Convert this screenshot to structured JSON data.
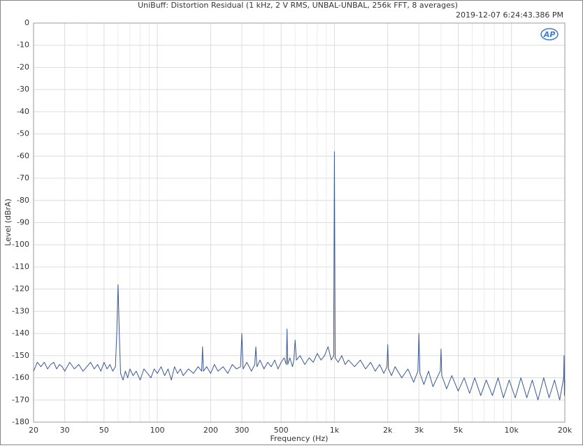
{
  "chart_data": {
    "type": "line",
    "title": "UniBuff: Distortion Residual (1 kHz, 2 V RMS, UNBAL-UNBAL, 256k FFT, 8 averages)",
    "subtitle": "2019-12-07 6:24:43.386 PM",
    "x_label": "Frequency (Hz)",
    "y_label": "Level (dBrA)",
    "x_scale": "log",
    "grid": true,
    "xlim": [
      20,
      20000
    ],
    "ylim": [
      -180,
      0
    ],
    "xticks": [
      20,
      30,
      50,
      100,
      200,
      300,
      500,
      {
        "value": 1000,
        "label": "1k"
      },
      {
        "value": 2000,
        "label": "2k"
      },
      {
        "value": 3000,
        "label": "3k"
      },
      {
        "value": 5000,
        "label": "5k"
      },
      {
        "value": 10000,
        "label": "10k"
      },
      {
        "value": 20000,
        "label": "20k"
      }
    ],
    "x_minor_ticks": [
      40,
      60,
      70,
      80,
      90,
      400,
      600,
      700,
      800,
      900,
      4000,
      6000,
      7000,
      8000,
      9000
    ],
    "yticks": [
      0,
      -10,
      -20,
      -30,
      -40,
      -50,
      -60,
      -70,
      -80,
      -90,
      -100,
      -110,
      -120,
      -130,
      -140,
      -150,
      -160,
      -170,
      -180
    ],
    "series": [
      {
        "color": "#3b5896",
        "x": [
          20,
          21,
          22,
          23,
          24,
          25,
          26,
          27,
          28,
          29,
          30,
          32,
          34,
          36,
          38,
          40,
          42,
          44,
          46,
          48,
          50,
          52,
          54,
          56,
          58,
          59,
          60,
          61,
          62,
          64,
          66,
          68,
          70,
          73,
          76,
          80,
          84,
          88,
          92,
          96,
          100,
          105,
          110,
          115,
          120,
          125,
          130,
          135,
          140,
          150,
          160,
          170,
          178,
          180,
          182,
          190,
          200,
          210,
          220,
          235,
          250,
          265,
          280,
          295,
          300,
          305,
          320,
          340,
          355,
          360,
          365,
          380,
          400,
          420,
          440,
          460,
          480,
          500,
          520,
          535,
          540,
          545,
          560,
          580,
          590,
          600,
          610,
          640,
          680,
          720,
          760,
          800,
          840,
          880,
          920,
          960,
          990,
          1000,
          1010,
          1050,
          1100,
          1150,
          1200,
          1300,
          1400,
          1500,
          1600,
          1700,
          1800,
          1900,
          1980,
          2000,
          2020,
          2100,
          2200,
          2400,
          2600,
          2800,
          2960,
          3000,
          3040,
          3200,
          3400,
          3600,
          3900,
          3960,
          4000,
          4040,
          4300,
          4600,
          5000,
          5400,
          5800,
          6200,
          6700,
          7200,
          7800,
          8400,
          9000,
          9700,
          10500,
          11300,
          12200,
          13100,
          14100,
          15200,
          16300,
          17500,
          18700,
          19700,
          19800,
          19900,
          20000
        ],
        "values": [
          -157,
          -153,
          -155,
          -153,
          -156,
          -154,
          -153,
          -156,
          -154,
          -155,
          -157,
          -153,
          -156,
          -154,
          -157,
          -155,
          -153,
          -156,
          -154,
          -157,
          -153,
          -156,
          -154,
          -157,
          -155,
          -140,
          -118,
          -140,
          -158,
          -161,
          -157,
          -160,
          -156,
          -159,
          -157,
          -161,
          -156,
          -158,
          -160,
          -156,
          -158,
          -155,
          -159,
          -156,
          -161,
          -155,
          -158,
          -156,
          -159,
          -156,
          -158,
          -155,
          -157,
          -146,
          -157,
          -155,
          -158,
          -154,
          -157,
          -155,
          -158,
          -154,
          -156,
          -155,
          -140,
          -156,
          -153,
          -157,
          -154,
          -146,
          -155,
          -152,
          -156,
          -153,
          -155,
          -152,
          -156,
          -153,
          -151,
          -154,
          -138,
          -154,
          -151,
          -155,
          -152,
          -143,
          -152,
          -150,
          -154,
          -151,
          -153,
          -149,
          -152,
          -150,
          -146,
          -152,
          -150,
          -58,
          -151,
          -153,
          -150,
          -154,
          -152,
          -155,
          -152,
          -156,
          -153,
          -157,
          -154,
          -158,
          -155,
          -145,
          -156,
          -159,
          -155,
          -160,
          -156,
          -162,
          -157,
          -140,
          -158,
          -163,
          -157,
          -164,
          -158,
          -157,
          -147,
          -159,
          -165,
          -159,
          -166,
          -160,
          -167,
          -160,
          -168,
          -161,
          -168,
          -160,
          -169,
          -161,
          -169,
          -160,
          -169,
          -161,
          -170,
          -160,
          -169,
          -161,
          -170,
          -160,
          -150,
          -168,
          -161
        ]
      }
    ]
  }
}
